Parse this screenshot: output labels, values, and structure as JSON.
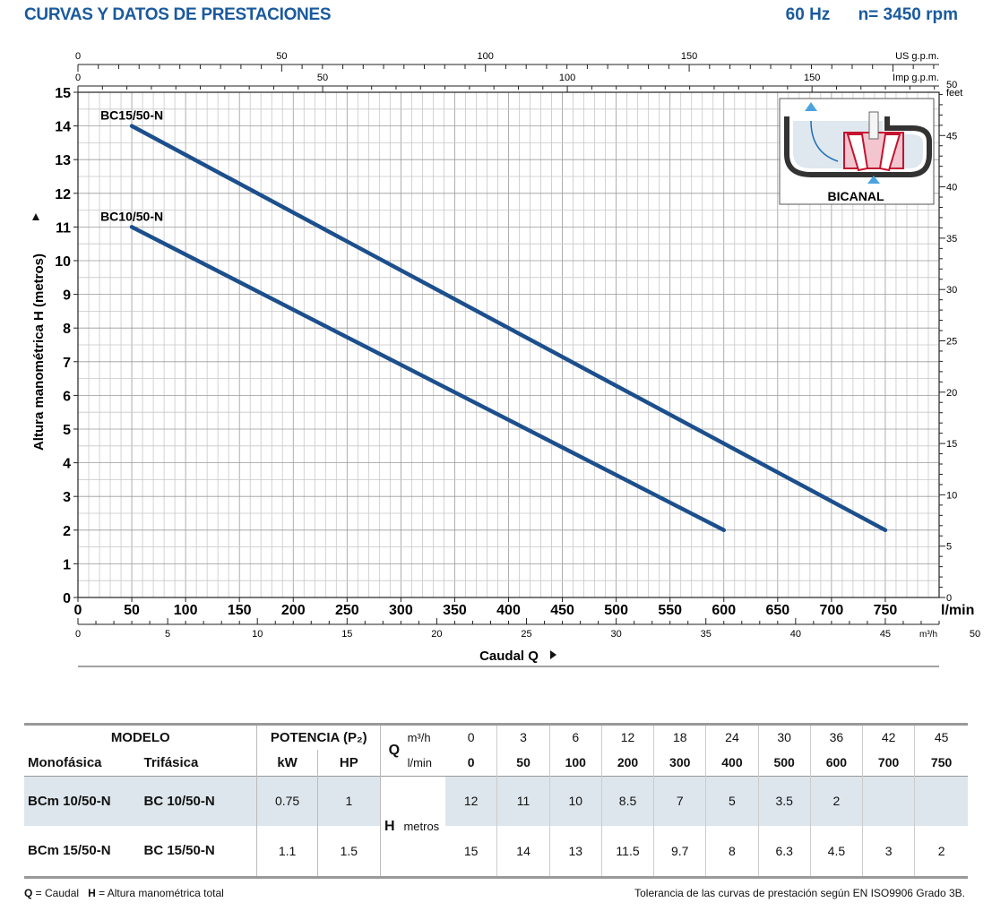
{
  "header": {
    "title": "CURVAS Y DATOS DE PRESTACIONES",
    "frequency": "60 Hz",
    "speed": "n= 3450 rpm"
  },
  "chart_data": {
    "type": "line",
    "ylabel": "Altura manométrica H (metros)",
    "xlabel": "Caudal Q",
    "ylim": [
      0,
      15
    ],
    "xlim": [
      0,
      800
    ],
    "x_unit": "l/min",
    "y_ticks": [
      0,
      1,
      2,
      3,
      4,
      5,
      6,
      7,
      8,
      9,
      10,
      11,
      12,
      13,
      14,
      15
    ],
    "x_ticks": [
      0,
      50,
      100,
      150,
      200,
      250,
      300,
      350,
      400,
      450,
      500,
      550,
      600,
      650,
      700,
      750
    ],
    "secondary_axes": {
      "us_gpm": {
        "unit": "US g.p.m.",
        "ticks": [
          0,
          50,
          100,
          150
        ]
      },
      "imp_gpm": {
        "unit": "Imp g.p.m.",
        "ticks": [
          0,
          50,
          100,
          150
        ]
      },
      "m3h": {
        "unit": "m³/h",
        "ticks": [
          0,
          5,
          10,
          15,
          20,
          25,
          30,
          35,
          40,
          45,
          50
        ]
      },
      "feet": {
        "unit": "feet",
        "ticks": [
          0,
          5,
          10,
          15,
          20,
          25,
          30,
          35,
          40,
          45,
          50
        ]
      }
    },
    "grid": true,
    "series": [
      {
        "name": "BC15/50-N",
        "x": [
          50,
          750
        ],
        "y": [
          14,
          2
        ]
      },
      {
        "name": "BC10/50-N",
        "x": [
          50,
          600
        ],
        "y": [
          11,
          2
        ]
      }
    ],
    "inset_label": "BICANAL"
  },
  "table": {
    "modelo": "MODELO",
    "potencia": "POTENCIA (P₂)",
    "monofasica": "Monofásica",
    "trifasica": "Trifásica",
    "kw": "kW",
    "hp": "HP",
    "q": "Q",
    "m3h_unit": "m³/h",
    "lmin_unit": "l/min",
    "h": "H",
    "metros": "metros",
    "m3h_values": [
      "0",
      "3",
      "6",
      "12",
      "18",
      "24",
      "30",
      "36",
      "42",
      "45"
    ],
    "lmin_values": [
      "0",
      "50",
      "100",
      "200",
      "300",
      "400",
      "500",
      "600",
      "700",
      "750"
    ],
    "rows": [
      {
        "mono": "BCm 10/50-N",
        "tri": "BC 10/50-N",
        "kw": "0.75",
        "hp": "1",
        "h": [
          "12",
          "11",
          "10",
          "8.5",
          "7",
          "5",
          "3.5",
          "2",
          "",
          ""
        ]
      },
      {
        "mono": "BCm 15/50-N",
        "tri": "BC 15/50-N",
        "kw": "1.1",
        "hp": "1.5",
        "h": [
          "15",
          "14",
          "13",
          "11.5",
          "9.7",
          "8",
          "6.3",
          "4.5",
          "3",
          "2"
        ]
      }
    ]
  },
  "footer": {
    "q_label": "Q",
    "q_text": " = Caudal",
    "h_label": "H",
    "h_text": " = Altura manométrica total",
    "tolerance": "Tolerancia de las curvas de prestación según EN ISO9906 Grado 3B."
  }
}
